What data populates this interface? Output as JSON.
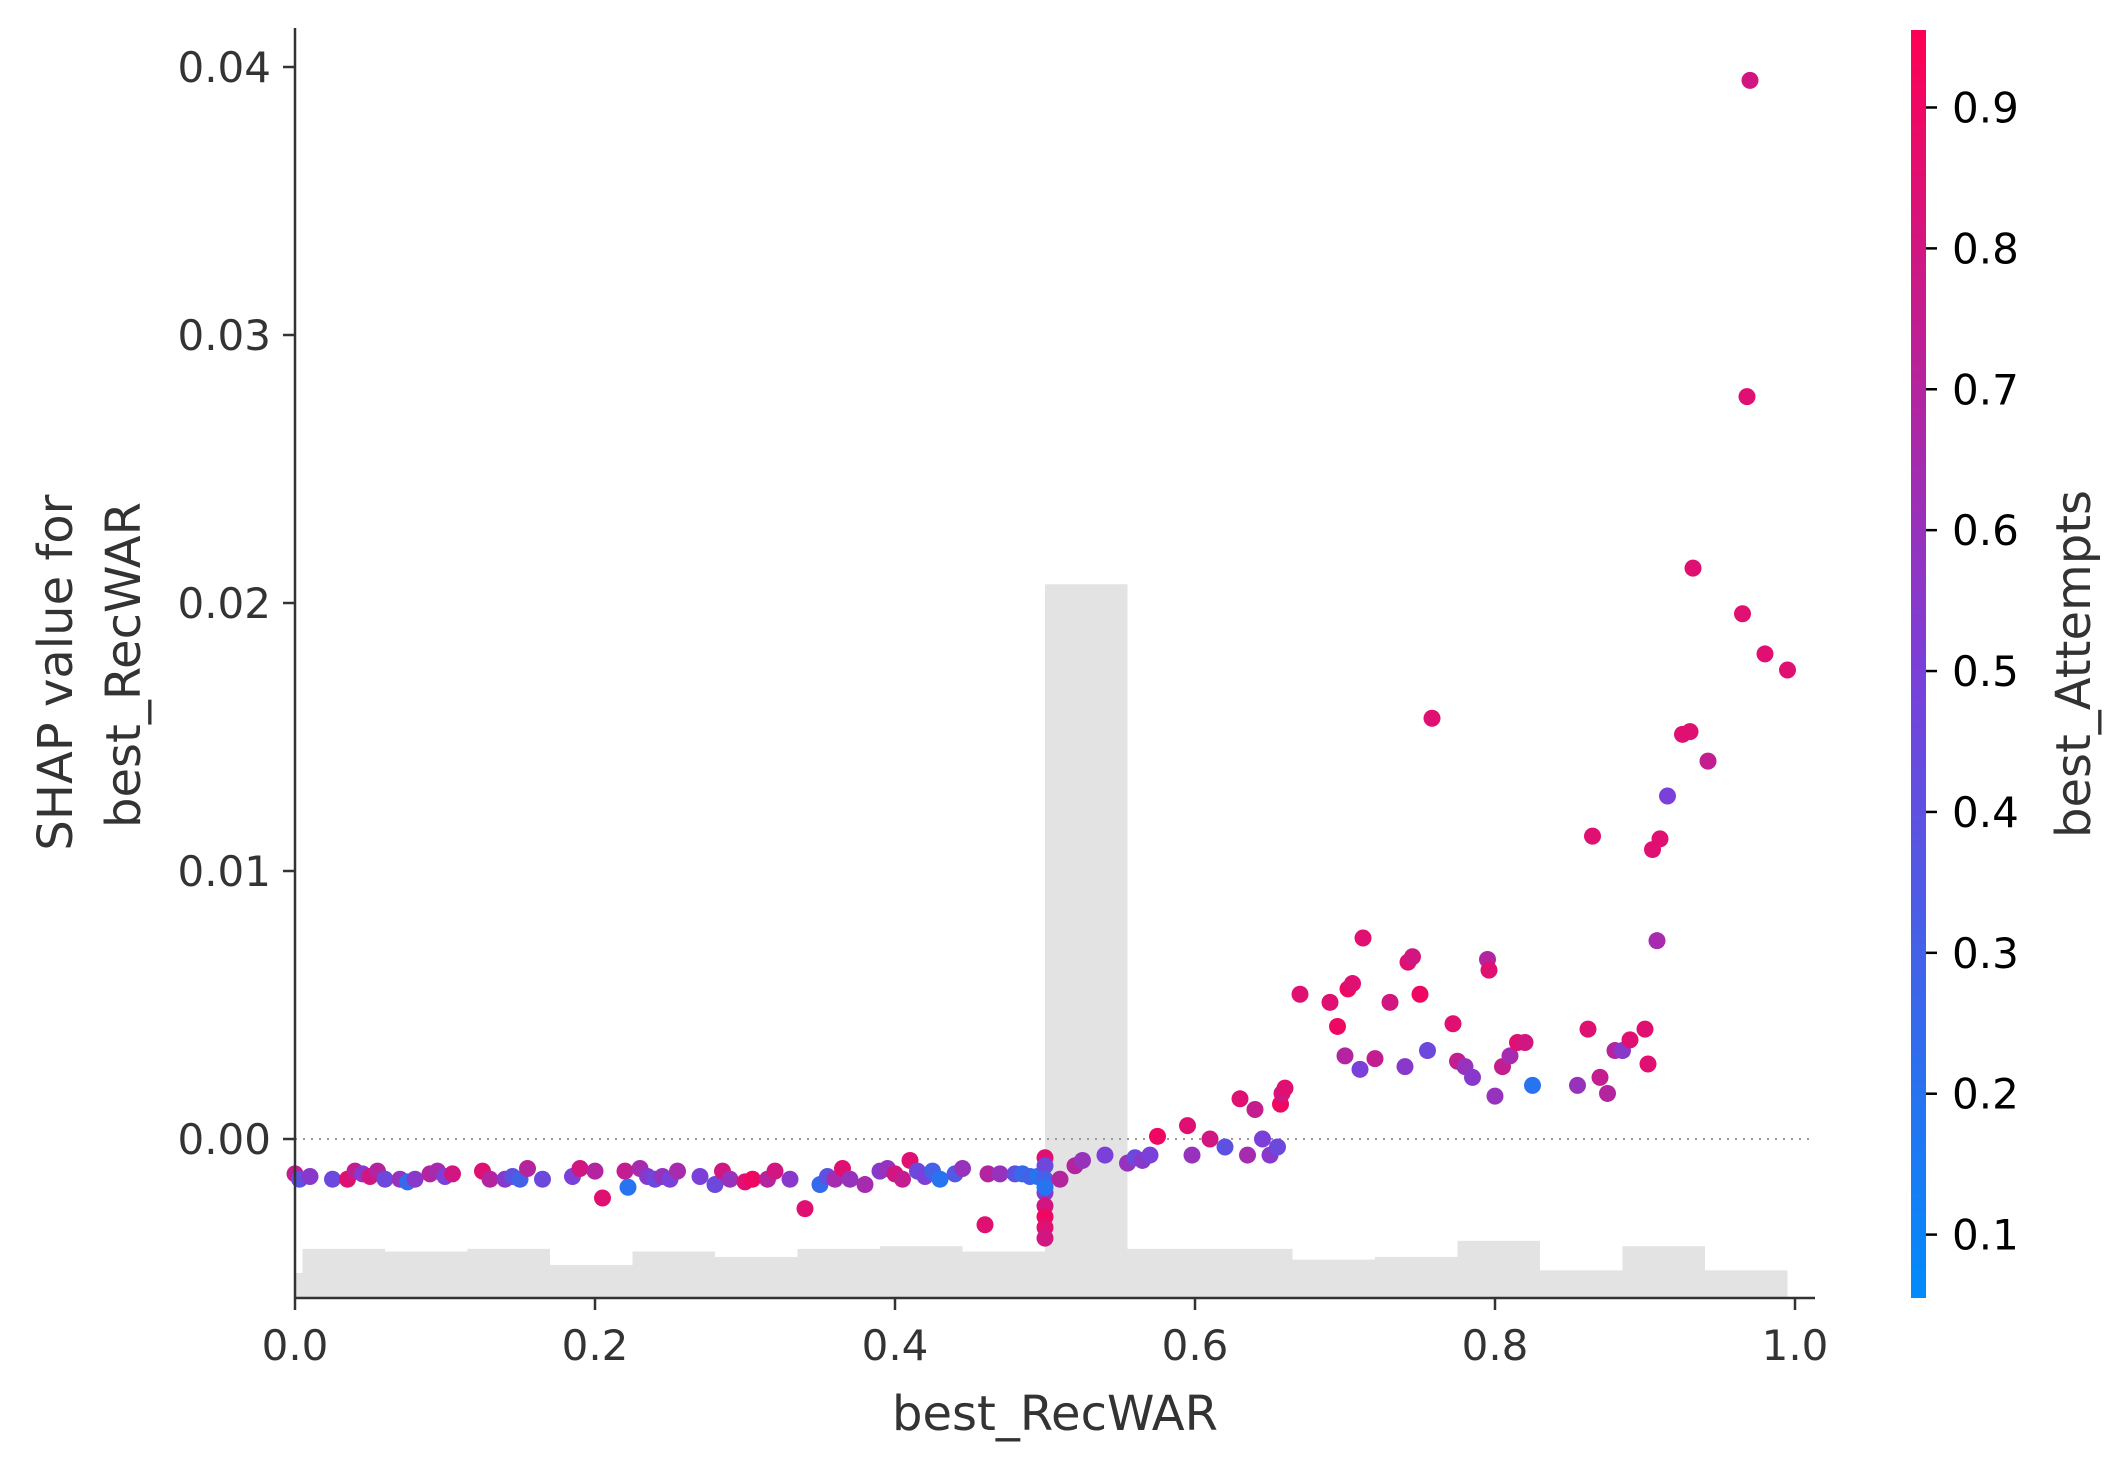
{
  "chart_data": {
    "type": "scatter",
    "title": "",
    "xlabel": "best_RecWAR",
    "ylabel_lines": [
      "SHAP value for",
      "best_RecWAR"
    ],
    "xlim": [
      -0.05,
      1.05
    ],
    "ylim": [
      -0.0059,
      0.0417
    ],
    "x_ticks": [
      0.0,
      0.2,
      0.4,
      0.6,
      0.8,
      1.0
    ],
    "x_tick_labels": [
      "0.0",
      "0.2",
      "0.4",
      "0.6",
      "0.8",
      "1.0"
    ],
    "y_ticks": [
      0.0,
      0.01,
      0.02,
      0.03,
      0.04
    ],
    "y_tick_labels": [
      "0.00",
      "0.01",
      "0.02",
      "0.03",
      "0.04"
    ],
    "zero_line": true,
    "grid": false,
    "colorbar": {
      "label": "best_Attempts",
      "min": 0.055,
      "max": 0.955,
      "ticks": [
        0.1,
        0.2,
        0.3,
        0.4,
        0.5,
        0.6,
        0.7,
        0.8,
        0.9
      ],
      "tick_labels": [
        "0.1",
        "0.2",
        "0.3",
        "0.4",
        "0.5",
        "0.6",
        "0.7",
        "0.8",
        "0.9"
      ],
      "colors": [
        "#008bfb",
        "#ff0052"
      ]
    },
    "histogram": {
      "color": "#e3e3e3",
      "bins": [
        {
          "x0": -0.05,
          "x1": 0.005,
          "h": 0.0009
        },
        {
          "x0": 0.005,
          "x1": 0.06,
          "h": 0.0018
        },
        {
          "x0": 0.06,
          "x1": 0.115,
          "h": 0.0017
        },
        {
          "x0": 0.115,
          "x1": 0.17,
          "h": 0.0018
        },
        {
          "x0": 0.17,
          "x1": 0.225,
          "h": 0.0012
        },
        {
          "x0": 0.225,
          "x1": 0.28,
          "h": 0.0017
        },
        {
          "x0": 0.28,
          "x1": 0.335,
          "h": 0.0015
        },
        {
          "x0": 0.335,
          "x1": 0.39,
          "h": 0.0018
        },
        {
          "x0": 0.39,
          "x1": 0.445,
          "h": 0.0019
        },
        {
          "x0": 0.445,
          "x1": 0.5,
          "h": 0.0017
        },
        {
          "x0": 0.5,
          "x1": 0.555,
          "h": 0.0266
        },
        {
          "x0": 0.555,
          "x1": 0.61,
          "h": 0.0018
        },
        {
          "x0": 0.61,
          "x1": 0.665,
          "h": 0.0018
        },
        {
          "x0": 0.665,
          "x1": 0.72,
          "h": 0.0014
        },
        {
          "x0": 0.72,
          "x1": 0.775,
          "h": 0.0015
        },
        {
          "x0": 0.775,
          "x1": 0.83,
          "h": 0.0021
        },
        {
          "x0": 0.83,
          "x1": 0.885,
          "h": 0.001
        },
        {
          "x0": 0.885,
          "x1": 0.94,
          "h": 0.0019
        },
        {
          "x0": 0.94,
          "x1": 0.995,
          "h": 0.001
        }
      ]
    },
    "points": [
      [
        0.0,
        -0.0013,
        0.75
      ],
      [
        0.003,
        -0.0015,
        0.4
      ],
      [
        0.01,
        -0.0014,
        0.55
      ],
      [
        0.025,
        -0.0015,
        0.45
      ],
      [
        0.035,
        -0.0015,
        0.85
      ],
      [
        0.04,
        -0.0012,
        0.75
      ],
      [
        0.045,
        -0.0013,
        0.55
      ],
      [
        0.05,
        -0.0014,
        0.8
      ],
      [
        0.055,
        -0.0012,
        0.7
      ],
      [
        0.06,
        -0.0015,
        0.45
      ],
      [
        0.07,
        -0.0015,
        0.6
      ],
      [
        0.075,
        -0.0016,
        0.25
      ],
      [
        0.08,
        -0.0015,
        0.55
      ],
      [
        0.09,
        -0.0013,
        0.7
      ],
      [
        0.095,
        -0.0012,
        0.65
      ],
      [
        0.1,
        -0.0014,
        0.5
      ],
      [
        0.105,
        -0.0013,
        0.8
      ],
      [
        0.125,
        -0.0012,
        0.85
      ],
      [
        0.13,
        -0.0015,
        0.7
      ],
      [
        0.14,
        -0.0015,
        0.55
      ],
      [
        0.145,
        -0.0014,
        0.4
      ],
      [
        0.15,
        -0.0015,
        0.3
      ],
      [
        0.155,
        -0.0011,
        0.7
      ],
      [
        0.165,
        -0.0015,
        0.45
      ],
      [
        0.185,
        -0.0014,
        0.5
      ],
      [
        0.19,
        -0.0011,
        0.8
      ],
      [
        0.2,
        -0.0012,
        0.7
      ],
      [
        0.205,
        -0.0022,
        0.85
      ],
      [
        0.22,
        -0.0012,
        0.75
      ],
      [
        0.222,
        -0.0018,
        0.2
      ],
      [
        0.23,
        -0.0011,
        0.65
      ],
      [
        0.235,
        -0.0014,
        0.55
      ],
      [
        0.24,
        -0.0015,
        0.45
      ],
      [
        0.245,
        -0.0014,
        0.6
      ],
      [
        0.25,
        -0.0015,
        0.5
      ],
      [
        0.255,
        -0.0012,
        0.65
      ],
      [
        0.27,
        -0.0014,
        0.5
      ],
      [
        0.28,
        -0.0017,
        0.45
      ],
      [
        0.285,
        -0.0012,
        0.8
      ],
      [
        0.29,
        -0.0015,
        0.6
      ],
      [
        0.3,
        -0.0016,
        0.85
      ],
      [
        0.305,
        -0.0015,
        0.9
      ],
      [
        0.315,
        -0.0015,
        0.7
      ],
      [
        0.32,
        -0.0012,
        0.8
      ],
      [
        0.33,
        -0.0015,
        0.55
      ],
      [
        0.34,
        -0.0026,
        0.85
      ],
      [
        0.35,
        -0.0017,
        0.25
      ],
      [
        0.355,
        -0.0014,
        0.4
      ],
      [
        0.36,
        -0.0015,
        0.65
      ],
      [
        0.365,
        -0.0011,
        0.85
      ],
      [
        0.37,
        -0.0015,
        0.6
      ],
      [
        0.38,
        -0.0017,
        0.65
      ],
      [
        0.39,
        -0.0012,
        0.55
      ],
      [
        0.395,
        -0.0011,
        0.6
      ],
      [
        0.4,
        -0.0013,
        0.8
      ],
      [
        0.405,
        -0.0015,
        0.75
      ],
      [
        0.41,
        -0.0008,
        0.85
      ],
      [
        0.415,
        -0.0012,
        0.45
      ],
      [
        0.42,
        -0.0014,
        0.5
      ],
      [
        0.425,
        -0.0012,
        0.3
      ],
      [
        0.43,
        -0.0015,
        0.2
      ],
      [
        0.44,
        -0.0013,
        0.35
      ],
      [
        0.445,
        -0.0011,
        0.6
      ],
      [
        0.46,
        -0.0032,
        0.85
      ],
      [
        0.462,
        -0.0013,
        0.7
      ],
      [
        0.47,
        -0.0013,
        0.6
      ],
      [
        0.48,
        -0.0013,
        0.4
      ],
      [
        0.485,
        -0.0013,
        0.25
      ],
      [
        0.49,
        -0.0014,
        0.3
      ],
      [
        0.495,
        -0.0014,
        0.2
      ],
      [
        0.5,
        -0.0007,
        0.85
      ],
      [
        0.5,
        -0.001,
        0.45
      ],
      [
        0.5,
        -0.0015,
        0.3
      ],
      [
        0.5,
        -0.002,
        0.55
      ],
      [
        0.5,
        -0.0025,
        0.8
      ],
      [
        0.5,
        -0.0029,
        0.9
      ],
      [
        0.5,
        -0.0033,
        0.85
      ],
      [
        0.5,
        -0.0037,
        0.8
      ],
      [
        0.5,
        -0.0018,
        0.2
      ],
      [
        0.51,
        -0.0015,
        0.7
      ],
      [
        0.52,
        -0.001,
        0.7
      ],
      [
        0.525,
        -0.0008,
        0.6
      ],
      [
        0.54,
        -0.0006,
        0.5
      ],
      [
        0.555,
        -0.0009,
        0.6
      ],
      [
        0.56,
        -0.0007,
        0.45
      ],
      [
        0.565,
        -0.0008,
        0.55
      ],
      [
        0.57,
        -0.0006,
        0.5
      ],
      [
        0.575,
        0.0001,
        0.9
      ],
      [
        0.595,
        0.0005,
        0.85
      ],
      [
        0.598,
        -0.0006,
        0.6
      ],
      [
        0.61,
        0.0,
        0.8
      ],
      [
        0.62,
        -0.0003,
        0.4
      ],
      [
        0.63,
        0.0015,
        0.85
      ],
      [
        0.635,
        -0.0006,
        0.65
      ],
      [
        0.64,
        0.0011,
        0.75
      ],
      [
        0.645,
        0.0,
        0.5
      ],
      [
        0.65,
        -0.0006,
        0.55
      ],
      [
        0.655,
        -0.0003,
        0.45
      ],
      [
        0.657,
        0.0013,
        0.9
      ],
      [
        0.658,
        0.0017,
        0.8
      ],
      [
        0.66,
        0.0019,
        0.85
      ],
      [
        0.67,
        0.0054,
        0.85
      ],
      [
        0.69,
        0.0051,
        0.85
      ],
      [
        0.695,
        0.0042,
        0.9
      ],
      [
        0.7,
        0.0031,
        0.7
      ],
      [
        0.702,
        0.0056,
        0.9
      ],
      [
        0.705,
        0.0058,
        0.85
      ],
      [
        0.71,
        0.0026,
        0.5
      ],
      [
        0.712,
        0.0075,
        0.85
      ],
      [
        0.72,
        0.003,
        0.75
      ],
      [
        0.73,
        0.0051,
        0.8
      ],
      [
        0.74,
        0.0027,
        0.55
      ],
      [
        0.742,
        0.0066,
        0.85
      ],
      [
        0.745,
        0.0068,
        0.8
      ],
      [
        0.75,
        0.0054,
        0.9
      ],
      [
        0.755,
        0.0033,
        0.45
      ],
      [
        0.758,
        0.0157,
        0.85
      ],
      [
        0.772,
        0.0043,
        0.85
      ],
      [
        0.775,
        0.0029,
        0.75
      ],
      [
        0.78,
        0.0027,
        0.6
      ],
      [
        0.785,
        0.0023,
        0.55
      ],
      [
        0.795,
        0.0067,
        0.7
      ],
      [
        0.796,
        0.0063,
        0.85
      ],
      [
        0.8,
        0.0016,
        0.6
      ],
      [
        0.805,
        0.0027,
        0.75
      ],
      [
        0.81,
        0.0031,
        0.65
      ],
      [
        0.815,
        0.0036,
        0.85
      ],
      [
        0.82,
        0.0036,
        0.8
      ],
      [
        0.825,
        0.002,
        0.2
      ],
      [
        0.855,
        0.002,
        0.6
      ],
      [
        0.862,
        0.0041,
        0.85
      ],
      [
        0.865,
        0.0113,
        0.85
      ],
      [
        0.87,
        0.0023,
        0.75
      ],
      [
        0.875,
        0.0017,
        0.7
      ],
      [
        0.88,
        0.0033,
        0.7
      ],
      [
        0.885,
        0.0033,
        0.55
      ],
      [
        0.89,
        0.0037,
        0.85
      ],
      [
        0.9,
        0.0041,
        0.85
      ],
      [
        0.902,
        0.0028,
        0.85
      ],
      [
        0.905,
        0.0108,
        0.85
      ],
      [
        0.908,
        0.0074,
        0.65
      ],
      [
        0.91,
        0.0112,
        0.85
      ],
      [
        0.915,
        0.0128,
        0.5
      ],
      [
        0.925,
        0.0151,
        0.85
      ],
      [
        0.93,
        0.0152,
        0.85
      ],
      [
        0.932,
        0.0213,
        0.85
      ],
      [
        0.942,
        0.0141,
        0.75
      ],
      [
        0.965,
        0.0196,
        0.85
      ],
      [
        0.968,
        0.0277,
        0.85
      ],
      [
        0.97,
        0.0395,
        0.8
      ],
      [
        0.98,
        0.0181,
        0.85
      ],
      [
        0.995,
        0.0175,
        0.85
      ]
    ]
  }
}
